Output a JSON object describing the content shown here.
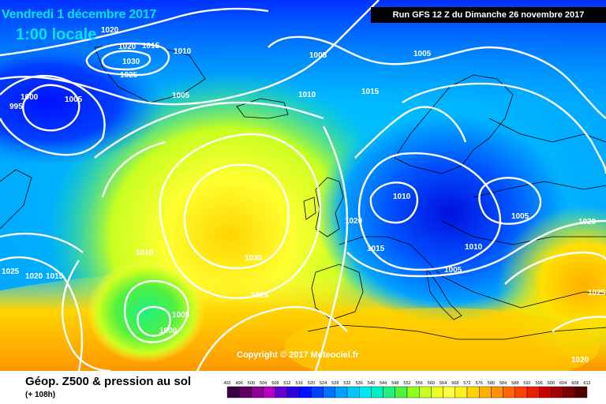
{
  "header": {
    "date_line": "Vendredi 1 décembre 2017",
    "hour_line": "1:00 locale",
    "run_info": "Run GFS 12 Z du Dimanche 26 novembre 2017"
  },
  "map": {
    "copyright": "Copyright © 2017 Meteociel.fr",
    "pressure_labels": [
      "1020",
      "1020",
      "1015",
      "1030",
      "1025",
      "1010",
      "995",
      "1000",
      "1005",
      "1005",
      "1010",
      "1015",
      "1005",
      "1005",
      "1010",
      "1005",
      "1020",
      "1015",
      "1010",
      "1005",
      "1020",
      "1030",
      "1025",
      "1010",
      "1025",
      "1020",
      "1015",
      "1005",
      "1000",
      "1025",
      "1020"
    ]
  },
  "footer": {
    "title": "Géop. Z500 & pression au sol",
    "subtitle": "(+ 108h)"
  },
  "scale": {
    "ticks": [
      "492",
      "496",
      "500",
      "504",
      "508",
      "512",
      "516",
      "520",
      "524",
      "528",
      "532",
      "536",
      "540",
      "544",
      "548",
      "552",
      "556",
      "560",
      "564",
      "568",
      "572",
      "576",
      "580",
      "584",
      "588",
      "592",
      "596",
      "600",
      "604",
      "608",
      "612"
    ],
    "colors": [
      "#3a0045",
      "#5e005e",
      "#8a0094",
      "#b400c0",
      "#6200d0",
      "#2c00e0",
      "#0010ff",
      "#0040ff",
      "#0070ff",
      "#00a0ff",
      "#00c8ff",
      "#00e8f0",
      "#00f0c0",
      "#20f080",
      "#50f040",
      "#90ff20",
      "#c8ff20",
      "#f0ff20",
      "#ffff40",
      "#fff020",
      "#ffd400",
      "#ffb000",
      "#ff9000",
      "#ff6800",
      "#ff4000",
      "#e82000",
      "#c80000",
      "#a00000",
      "#780000",
      "#500000"
    ]
  }
}
